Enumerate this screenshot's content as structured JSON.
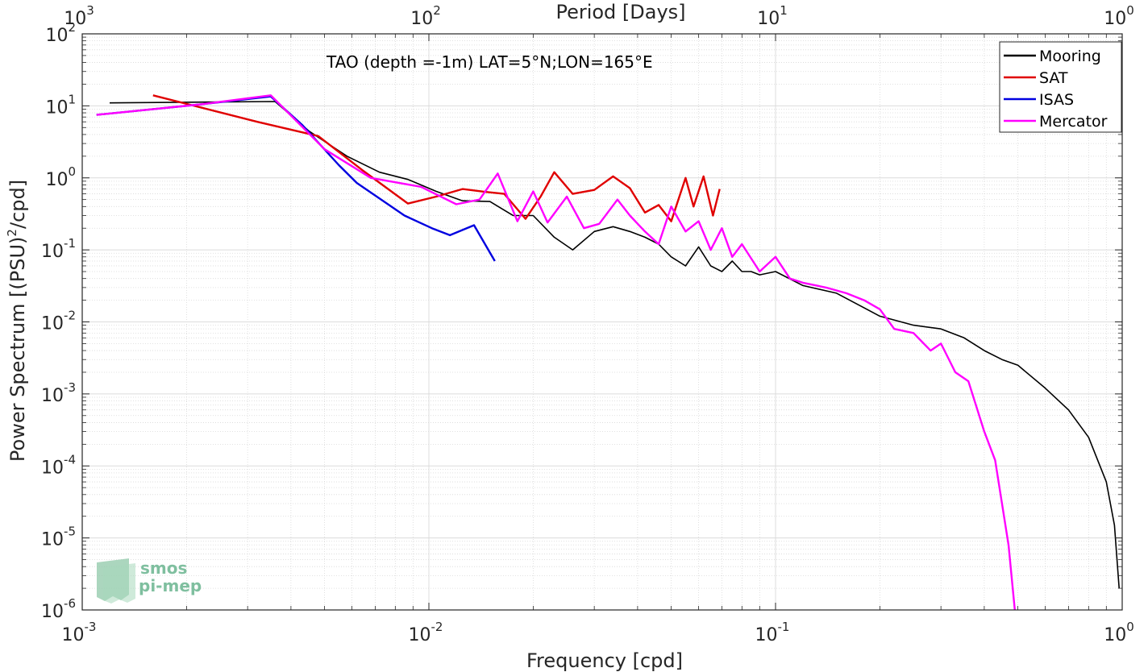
{
  "chart_data": {
    "type": "line",
    "title": "",
    "annotation": "TAO (depth =-1m) LAT=5°N;LON=165°E",
    "xlabel": "Frequency [cpd]",
    "ylabel_main": "Power Spectrum [(PSU)",
    "ylabel_sup": "2",
    "ylabel_tail": "/cpd]",
    "top_xlabel": "Period [Days]",
    "x_scale": "log",
    "y_scale": "log",
    "xlim": [
      0.001,
      1
    ],
    "ylim": [
      1e-06,
      100
    ],
    "grid": true,
    "legend_position": "top-right",
    "x_ticks": [
      {
        "base": "10",
        "exp": "-3"
      },
      {
        "base": "10",
        "exp": "-2"
      },
      {
        "base": "10",
        "exp": "-1"
      },
      {
        "base": "10",
        "exp": "0"
      }
    ],
    "y_ticks": [
      {
        "base": "10",
        "exp": "-6"
      },
      {
        "base": "10",
        "exp": "-5"
      },
      {
        "base": "10",
        "exp": "-4"
      },
      {
        "base": "10",
        "exp": "-3"
      },
      {
        "base": "10",
        "exp": "-2"
      },
      {
        "base": "10",
        "exp": "-1"
      },
      {
        "base": "10",
        "exp": "0"
      },
      {
        "base": "10",
        "exp": "1"
      },
      {
        "base": "10",
        "exp": "2"
      }
    ],
    "top_ticks": [
      {
        "base": "10",
        "exp": "3"
      },
      {
        "base": "10",
        "exp": "2"
      },
      {
        "base": "10",
        "exp": "1"
      },
      {
        "base": "10",
        "exp": "0"
      }
    ],
    "series": [
      {
        "name": "Mooring",
        "color": "#000000",
        "x": [
          0.0012,
          0.0036,
          0.0045,
          0.0058,
          0.0072,
          0.0087,
          0.0105,
          0.0125,
          0.015,
          0.0175,
          0.02,
          0.023,
          0.026,
          0.03,
          0.034,
          0.038,
          0.042,
          0.046,
          0.05,
          0.055,
          0.06,
          0.065,
          0.07,
          0.075,
          0.08,
          0.085,
          0.09,
          0.1,
          0.12,
          0.15,
          0.2,
          0.25,
          0.3,
          0.35,
          0.4,
          0.45,
          0.5,
          0.6,
          0.7,
          0.8,
          0.9,
          0.95,
          0.98
        ],
        "y": [
          11,
          11.5,
          4.5,
          2,
          1.2,
          0.95,
          0.65,
          0.48,
          0.47,
          0.3,
          0.3,
          0.15,
          0.1,
          0.18,
          0.21,
          0.18,
          0.15,
          0.12,
          0.08,
          0.06,
          0.11,
          0.06,
          0.05,
          0.07,
          0.05,
          0.05,
          0.045,
          0.05,
          0.032,
          0.025,
          0.012,
          0.009,
          0.008,
          0.006,
          0.004,
          0.003,
          0.0025,
          0.0012,
          0.0006,
          0.00025,
          6e-05,
          1.5e-05,
          2e-06
        ]
      },
      {
        "name": "SAT",
        "color": "#e00000",
        "x": [
          0.0016,
          0.0032,
          0.0048,
          0.0064,
          0.0087,
          0.0105,
          0.0125,
          0.0145,
          0.0165,
          0.019,
          0.021,
          0.023,
          0.026,
          0.03,
          0.034,
          0.038,
          0.042,
          0.046,
          0.05,
          0.055,
          0.058,
          0.062,
          0.066,
          0.069
        ],
        "y": [
          14,
          6,
          3.8,
          1.3,
          0.44,
          0.55,
          0.7,
          0.64,
          0.6,
          0.27,
          0.55,
          1.2,
          0.6,
          0.68,
          1.05,
          0.72,
          0.33,
          0.42,
          0.25,
          1.0,
          0.4,
          1.05,
          0.3,
          0.7
        ]
      },
      {
        "name": "ISAS",
        "color": "#0000e0",
        "x": [
          0.0011,
          0.0022,
          0.0035,
          0.0043,
          0.0055,
          0.0062,
          0.0085,
          0.0102,
          0.0115,
          0.0135,
          0.0155
        ],
        "y": [
          7.5,
          10.5,
          13.5,
          5.5,
          1.5,
          0.85,
          0.3,
          0.2,
          0.16,
          0.22,
          0.07
        ]
      },
      {
        "name": "Mercator",
        "color": "#ff00ff",
        "x": [
          0.0011,
          0.0022,
          0.0035,
          0.005,
          0.0068,
          0.0095,
          0.012,
          0.014,
          0.0158,
          0.018,
          0.02,
          0.022,
          0.025,
          0.028,
          0.031,
          0.035,
          0.038,
          0.042,
          0.046,
          0.05,
          0.055,
          0.06,
          0.065,
          0.07,
          0.075,
          0.08,
          0.09,
          0.1,
          0.11,
          0.12,
          0.14,
          0.16,
          0.18,
          0.2,
          0.22,
          0.25,
          0.28,
          0.3,
          0.33,
          0.36,
          0.4,
          0.43,
          0.45,
          0.47,
          0.49
        ],
        "y": [
          7.5,
          10.5,
          14,
          2.5,
          1,
          0.75,
          0.43,
          0.5,
          1.15,
          0.25,
          0.65,
          0.24,
          0.55,
          0.2,
          0.23,
          0.5,
          0.3,
          0.18,
          0.12,
          0.4,
          0.18,
          0.25,
          0.1,
          0.2,
          0.08,
          0.12,
          0.05,
          0.08,
          0.04,
          0.035,
          0.03,
          0.025,
          0.02,
          0.015,
          0.008,
          0.007,
          0.004,
          0.005,
          0.002,
          0.0015,
          0.0003,
          0.00012,
          3e-05,
          8e-06,
          1e-06
        ]
      }
    ]
  },
  "logo": {
    "line1": "smos",
    "line2": "pi-mep"
  }
}
